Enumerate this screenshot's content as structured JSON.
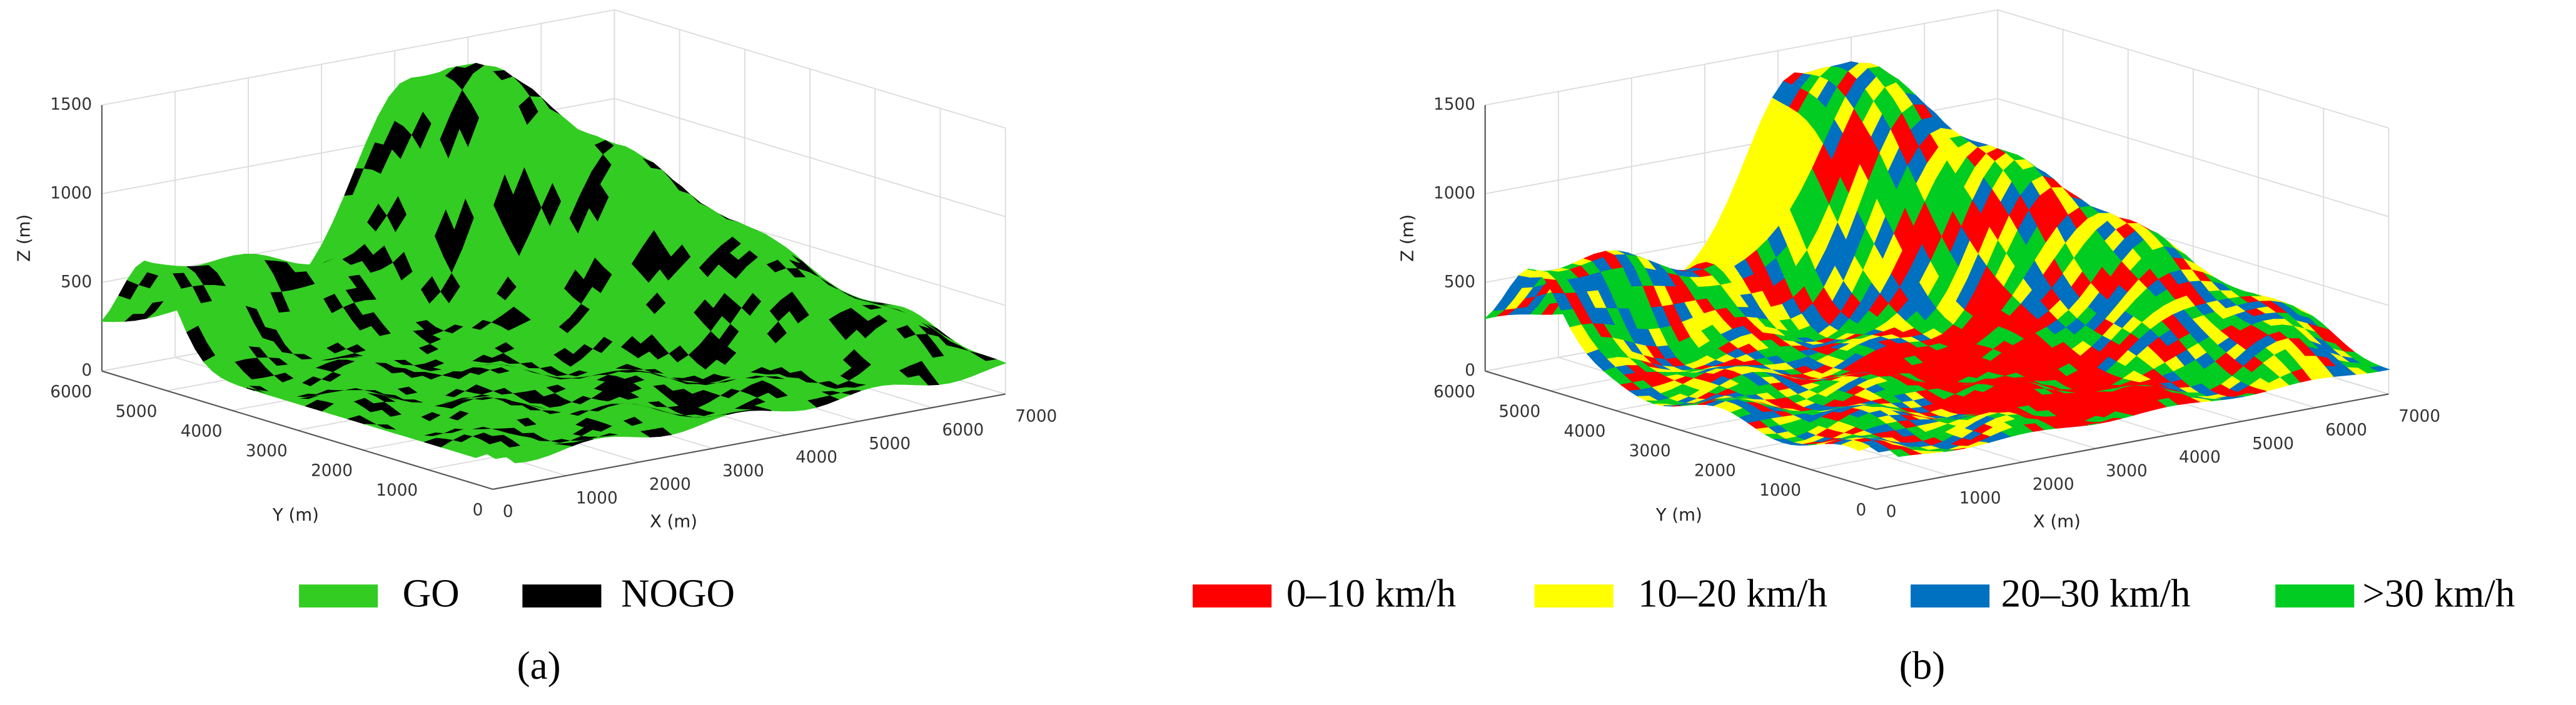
{
  "chart_data": [
    {
      "type": "surface3d",
      "xlabel": "X (m)",
      "ylabel": "Y (m)",
      "zlabel": "Z (m)",
      "xlim": [
        0,
        7000
      ],
      "ylim": [
        0,
        6000
      ],
      "zlim": [
        0,
        1500
      ],
      "xticks": [
        0,
        1000,
        2000,
        3000,
        4000,
        5000,
        6000,
        7000
      ],
      "yticks": [
        0,
        1000,
        2000,
        3000,
        4000,
        5000,
        6000
      ],
      "zticks": [
        0,
        500,
        1000,
        1500
      ],
      "grid": true,
      "legend": [
        {
          "name": "GO",
          "color": "#33cc22"
        },
        {
          "name": "NOGO",
          "color": "#000000"
        }
      ],
      "panel_label": "(a)"
    },
    {
      "type": "surface3d",
      "xlabel": "X (m)",
      "ylabel": "Y (m)",
      "zlabel": "Z (m)",
      "xlim": [
        0,
        7000
      ],
      "ylim": [
        0,
        6000
      ],
      "zlim": [
        0,
        1500
      ],
      "xticks": [
        0,
        1000,
        2000,
        3000,
        4000,
        5000,
        6000,
        7000
      ],
      "yticks": [
        0,
        1000,
        2000,
        3000,
        4000,
        5000,
        6000
      ],
      "zticks": [
        0,
        500,
        1000,
        1500
      ],
      "grid": true,
      "legend": [
        {
          "name": "0–10 km/h",
          "color": "#ff0000"
        },
        {
          "name": "10–20 km/h",
          "color": "#ffff00"
        },
        {
          "name": "20–30 km/h",
          "color": "#0070c0"
        },
        {
          "name": ">30 km/h",
          "color": "#00cc22"
        }
      ],
      "panel_label": "(b)"
    }
  ]
}
